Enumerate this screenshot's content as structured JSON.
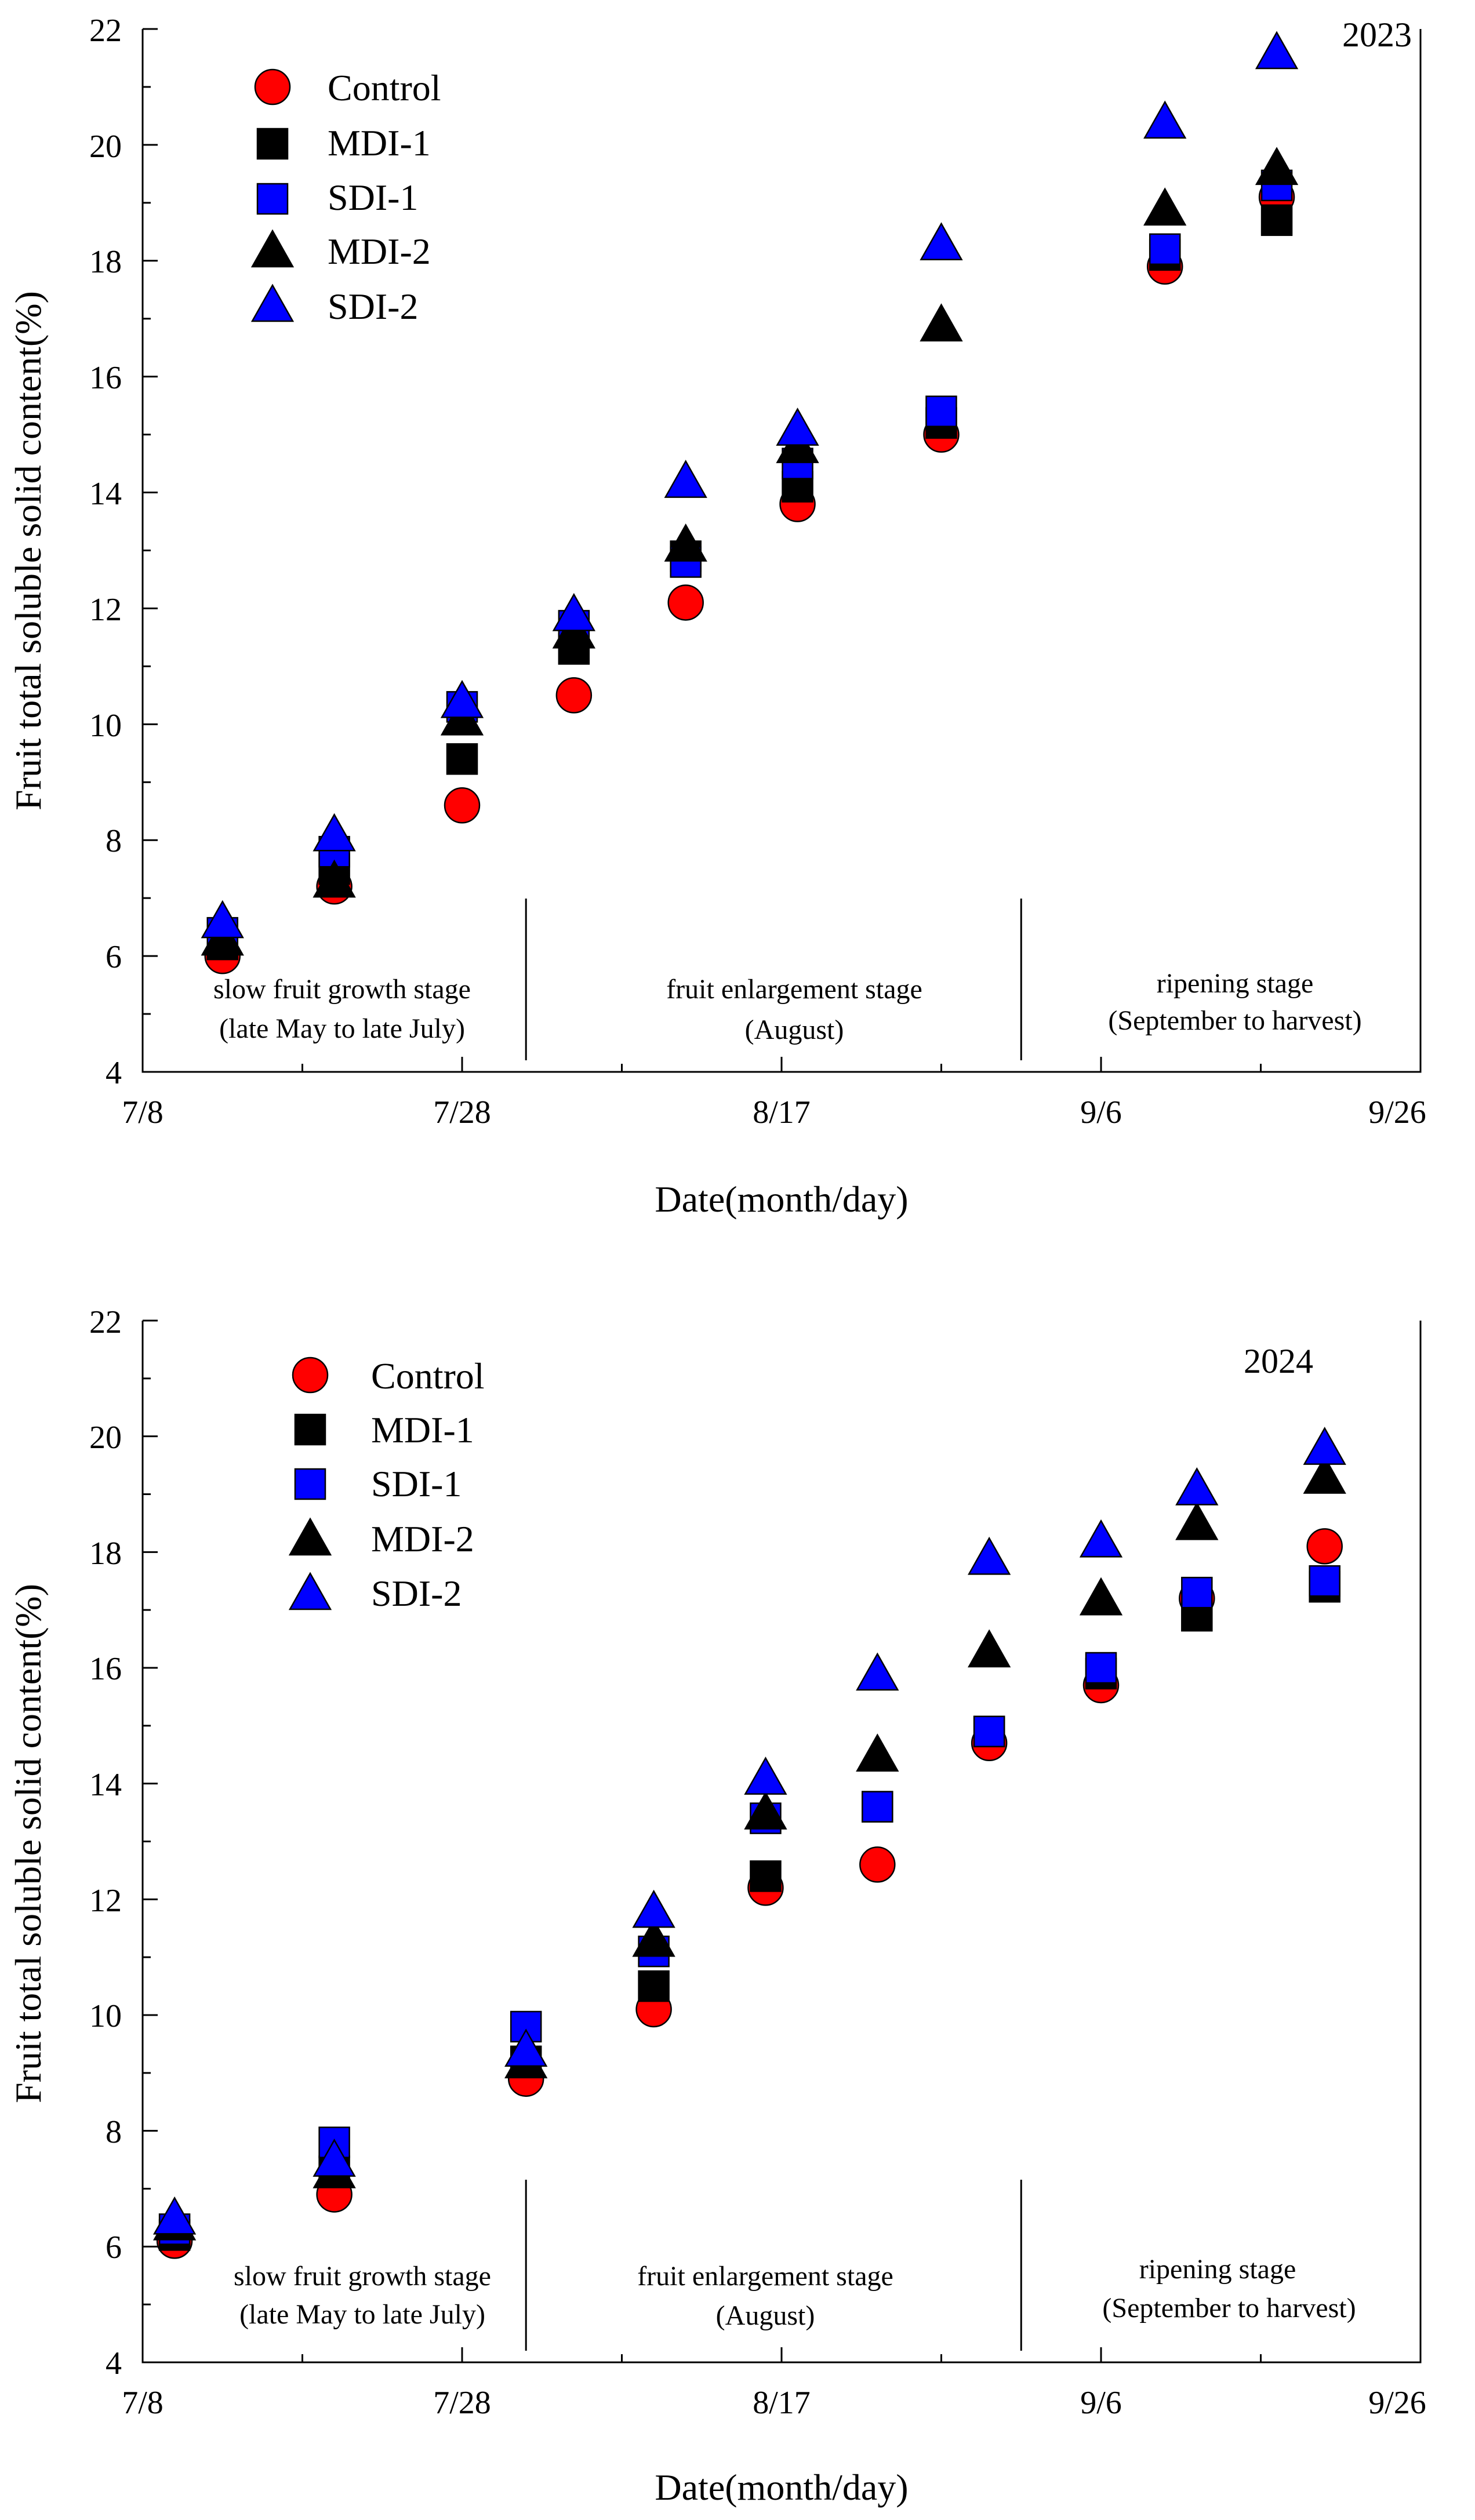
{
  "chart_data": [
    {
      "type": "scatter",
      "id": "2023",
      "title": "2023",
      "xlabel": "Date(month/day)",
      "ylabel": "Fruit total soluble solid content(%)",
      "x_unit": "day of year",
      "xlim": [
        189,
        269
      ],
      "ylim": [
        4,
        22
      ],
      "x_ticks": [
        189,
        209,
        229,
        249,
        269
      ],
      "x_tick_labels": [
        "7/8",
        "7/28",
        "8/17",
        "9/6",
        "9/26"
      ],
      "y_ticks": [
        4,
        6,
        8,
        10,
        12,
        14,
        16,
        18,
        20,
        22
      ],
      "y_tick_labels": [
        "4",
        "6",
        "8",
        "10",
        "12",
        "14",
        "16",
        "18",
        "20",
        "22"
      ],
      "x": [
        194,
        201,
        209,
        216,
        223,
        230,
        239,
        253,
        260
      ],
      "series": [
        {
          "name": "Control",
          "marker": "circle",
          "color": "#ff0000",
          "values": [
            6.0,
            7.2,
            8.6,
            10.5,
            12.1,
            13.8,
            15.0,
            17.9,
            19.1
          ]
        },
        {
          "name": "MDI-1",
          "marker": "square",
          "color": "#000000",
          "values": [
            6.2,
            7.5,
            9.4,
            11.3,
            12.9,
            14.1,
            15.2,
            18.1,
            18.7
          ]
        },
        {
          "name": "SDI-1",
          "marker": "square",
          "color": "#0000ff",
          "values": [
            6.4,
            7.8,
            10.3,
            11.7,
            12.8,
            14.5,
            15.4,
            18.2,
            19.3
          ]
        },
        {
          "name": "MDI-2",
          "marker": "triangle",
          "color": "#000000",
          "values": [
            6.3,
            7.3,
            10.1,
            11.6,
            13.1,
            14.8,
            16.9,
            18.9,
            19.6
          ]
        },
        {
          "name": "SDI-2",
          "marker": "triangle",
          "color": "#0000ff",
          "values": [
            6.6,
            8.1,
            10.4,
            11.9,
            14.2,
            15.1,
            18.3,
            20.4,
            21.6
          ]
        }
      ],
      "stages": [
        {
          "lines": [
            "slow fruit growth stage",
            "(late May to late July)"
          ]
        },
        {
          "lines": [
            "fruit enlargement stage",
            "(August)"
          ]
        },
        {
          "lines": [
            "ripening stage",
            "(September to harvest)"
          ]
        }
      ],
      "stage_boundaries": [
        213,
        244
      ]
    },
    {
      "type": "scatter",
      "id": "2024",
      "title": "2024",
      "xlabel": "Date(month/day)",
      "ylabel": "Fruit total soluble solid content(%)",
      "x_unit": "day of year",
      "xlim": [
        189,
        269
      ],
      "ylim": [
        4,
        22
      ],
      "x_ticks": [
        189,
        209,
        229,
        249,
        269
      ],
      "x_tick_labels": [
        "7/8",
        "7/28",
        "8/17",
        "9/6",
        "9/26"
      ],
      "y_ticks": [
        4,
        6,
        8,
        10,
        12,
        14,
        16,
        18,
        20,
        22
      ],
      "y_tick_labels": [
        "4",
        "6",
        "8",
        "10",
        "12",
        "14",
        "16",
        "18",
        "20",
        "22"
      ],
      "x": [
        191,
        201,
        213,
        221,
        228,
        235,
        242,
        249,
        255,
        263
      ],
      "series": [
        {
          "name": "Control",
          "marker": "circle",
          "color": "#ff0000",
          "values": [
            6.1,
            6.9,
            8.9,
            10.1,
            12.2,
            12.6,
            14.7,
            15.7,
            17.2,
            18.1
          ]
        },
        {
          "name": "MDI-1",
          "marker": "square",
          "color": "#000000",
          "values": [
            6.2,
            7.3,
            9.2,
            10.5,
            12.4,
            13.6,
            14.9,
            15.9,
            16.9,
            17.4
          ]
        },
        {
          "name": "SDI-1",
          "marker": "square",
          "color": "#0000ff",
          "values": [
            6.3,
            7.8,
            9.8,
            11.1,
            13.4,
            13.6,
            14.9,
            16.0,
            17.3,
            17.5
          ]
        },
        {
          "name": "MDI-2",
          "marker": "triangle",
          "color": "#000000",
          "values": [
            6.4,
            7.3,
            9.2,
            11.3,
            13.5,
            14.5,
            16.3,
            17.2,
            18.5,
            19.3
          ]
        },
        {
          "name": "SDI-2",
          "marker": "triangle",
          "color": "#0000ff",
          "values": [
            6.5,
            7.5,
            9.4,
            11.8,
            14.1,
            15.9,
            17.9,
            18.2,
            19.1,
            19.8
          ]
        }
      ],
      "stages": [
        {
          "lines": [
            "slow fruit growth stage",
            "(late May to late July)"
          ]
        },
        {
          "lines": [
            "fruit enlargement stage",
            "(August)"
          ]
        },
        {
          "lines": [
            "ripening stage",
            "(September to harvest)"
          ]
        }
      ],
      "stage_boundaries": [
        213,
        244
      ]
    }
  ]
}
